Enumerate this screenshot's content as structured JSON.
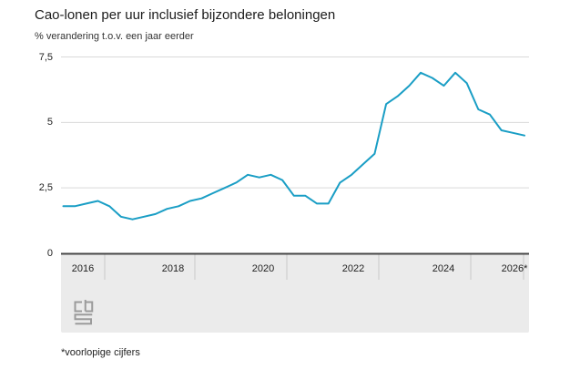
{
  "header": {
    "title": "Cao-lonen per uur inclusief bijzondere beloningen",
    "subtitle": "% verandering t.o.v. een jaar eerder"
  },
  "footer": {
    "note": "*voorlopige cijfers"
  },
  "logo": {
    "name": "cbs-logo"
  },
  "colors": {
    "line": "#1a9ec5",
    "grid": "#d9d9d9",
    "axis": "#474747",
    "band": "#ebebeb",
    "separator": "#c9c9c9",
    "text": "#222222",
    "logo_grey": "#9b9b9b"
  },
  "chart_data": {
    "type": "line",
    "title": "Cao-lonen per uur inclusief bijzondere beloningen",
    "ylabel": "% verandering t.o.v. een jaar eerder",
    "xlabel": "",
    "grid": "horizontal",
    "legend": "none",
    "ylim": [
      0,
      7.5
    ],
    "y_ticks": [
      0,
      2.5,
      5,
      7.5
    ],
    "y_tick_labels": [
      "0",
      "2,5",
      "5",
      "7,5"
    ],
    "x_tick_labels": [
      "2016",
      "2018",
      "2020",
      "2022",
      "2024",
      "2026*"
    ],
    "x_range_years": [
      2016,
      2026
    ],
    "frequency": "quarterly",
    "x": [
      "2016K1",
      "2016K2",
      "2016K3",
      "2016K4",
      "2017K1",
      "2017K2",
      "2017K3",
      "2017K4",
      "2018K1",
      "2018K2",
      "2018K3",
      "2018K4",
      "2019K1",
      "2019K2",
      "2019K3",
      "2019K4",
      "2020K1",
      "2020K2",
      "2020K3",
      "2020K4",
      "2021K1",
      "2021K2",
      "2021K3",
      "2021K4",
      "2022K1",
      "2022K2",
      "2022K3",
      "2022K4",
      "2023K1",
      "2023K2",
      "2023K3",
      "2023K4",
      "2024K1",
      "2024K2",
      "2024K3",
      "2024K4",
      "2025K1",
      "2025K2",
      "2025K3",
      "2025K4",
      "2026K1"
    ],
    "series": [
      {
        "name": "Cao-lonen per uur inclusief bijzondere beloningen",
        "values": [
          1.8,
          1.8,
          1.9,
          2.0,
          1.8,
          1.4,
          1.3,
          1.4,
          1.5,
          1.7,
          1.8,
          2.0,
          2.1,
          2.3,
          2.5,
          2.7,
          3.0,
          2.9,
          3.0,
          2.8,
          2.2,
          2.2,
          1.9,
          1.9,
          2.7,
          3.0,
          3.4,
          3.8,
          5.7,
          6.0,
          6.4,
          6.9,
          6.7,
          6.4,
          6.9,
          6.5,
          5.5,
          5.3,
          4.7,
          4.6,
          4.5
        ]
      }
    ]
  }
}
